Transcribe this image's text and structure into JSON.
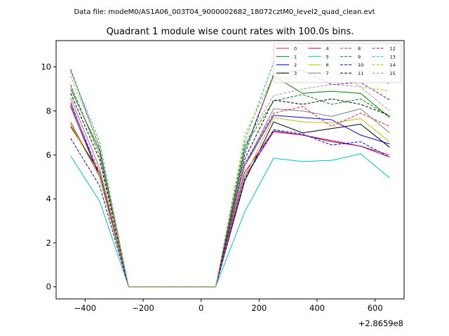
{
  "suptitle": "Data file: modeM0/AS1A06_003T04_9000002682_18072cztM0_level2_quad_clean.evt",
  "chart_data": {
    "type": "line",
    "title": "Quadrant 1 module wise count rates with 100.0s bins.",
    "xlabel": "",
    "ylabel": "",
    "x_offset_label": "+2.8659e8",
    "x": [
      -450,
      -350,
      -250,
      -150,
      -50,
      50,
      150,
      250,
      350,
      450,
      550,
      650
    ],
    "xlim": [
      -500,
      700
    ],
    "ylim": [
      -0.55,
      11.2
    ],
    "xticks": [
      -400,
      -200,
      0,
      200,
      400,
      600
    ],
    "xtick_labels": [
      "−400",
      "−200",
      "0",
      "200",
      "400",
      "600"
    ],
    "yticks": [
      0,
      2,
      4,
      6,
      8,
      10
    ],
    "ytick_labels": [
      "0",
      "2",
      "4",
      "6",
      "8",
      "10"
    ],
    "legend_position": "top-right",
    "legend_columns": 4,
    "series": [
      {
        "name": "0",
        "color": "#d62728",
        "dash": "solid",
        "values": [
          7.5,
          5.0,
          0,
          0,
          0,
          0,
          5.0,
          7.05,
          6.9,
          6.6,
          6.4,
          6.0
        ]
      },
      {
        "name": "1",
        "color": "#008000",
        "dash": "solid",
        "values": [
          9.0,
          6.2,
          0,
          0,
          0,
          0,
          6.2,
          9.6,
          8.8,
          8.9,
          8.8,
          7.7
        ]
      },
      {
        "name": "2",
        "color": "#0000ff",
        "dash": "solid",
        "values": [
          8.2,
          5.0,
          0,
          0,
          0,
          0,
          5.5,
          7.8,
          7.7,
          7.6,
          6.9,
          6.5
        ]
      },
      {
        "name": "3",
        "color": "#000000",
        "dash": "solid",
        "values": [
          7.3,
          5.2,
          0,
          0,
          0,
          0,
          4.8,
          7.5,
          7.0,
          7.2,
          7.4,
          6.35
        ]
      },
      {
        "name": "4",
        "color": "#8b008b",
        "dash": "solid",
        "values": [
          8.4,
          5.0,
          0,
          0,
          0,
          0,
          5.2,
          7.1,
          6.9,
          6.65,
          6.4,
          5.9
        ]
      },
      {
        "name": "5",
        "color": "#00bfbf",
        "dash": "solid",
        "values": [
          5.95,
          3.9,
          0,
          0,
          0,
          0,
          3.4,
          5.85,
          5.7,
          5.75,
          6.05,
          4.95
        ]
      },
      {
        "name": "6",
        "color": "#bfbf00",
        "dash": "solid",
        "values": [
          7.4,
          5.0,
          0,
          0,
          0,
          0,
          5.0,
          7.7,
          7.5,
          7.45,
          7.65,
          6.6
        ]
      },
      {
        "name": "7",
        "color": "#808080",
        "dash": "solid",
        "values": [
          8.6,
          5.4,
          0,
          0,
          0,
          0,
          5.5,
          8.1,
          8.0,
          7.75,
          8.1,
          7.0
        ]
      },
      {
        "name": "8",
        "color": "#d62728",
        "dash": "dashed",
        "values": [
          8.3,
          5.2,
          0,
          0,
          0,
          0,
          5.6,
          7.9,
          8.2,
          7.3,
          7.9,
          7.3
        ]
      },
      {
        "name": "9",
        "color": "#008000",
        "dash": "dashed",
        "values": [
          9.2,
          6.0,
          0,
          0,
          0,
          0,
          6.4,
          8.45,
          8.75,
          8.3,
          8.55,
          7.75
        ]
      },
      {
        "name": "10",
        "color": "#0000ff",
        "dash": "dashed",
        "values": [
          6.75,
          4.6,
          0,
          0,
          0,
          0,
          4.9,
          7.15,
          6.95,
          6.45,
          6.6,
          5.9
        ]
      },
      {
        "name": "11",
        "color": "#000000",
        "dash": "dashed",
        "values": [
          8.8,
          5.8,
          0,
          0,
          0,
          0,
          5.8,
          8.5,
          8.3,
          8.55,
          8.3,
          7.8
        ]
      },
      {
        "name": "12",
        "color": "#9400d3",
        "dash": "dashed",
        "values": [
          9.9,
          6.3,
          0,
          0,
          0,
          0,
          6.0,
          9.7,
          9.85,
          9.2,
          9.3,
          8.5
        ]
      },
      {
        "name": "13",
        "color": "#00bfbf",
        "dash": "dashed",
        "values": [
          9.8,
          6.6,
          0,
          0,
          0,
          0,
          6.6,
          10.2,
          10.65,
          10.4,
          10.1,
          9.2
        ]
      },
      {
        "name": "14",
        "color": "#bfbf00",
        "dash": "dashed",
        "values": [
          9.6,
          6.4,
          0,
          0,
          0,
          0,
          6.9,
          9.6,
          9.3,
          9.9,
          9.1,
          8.9
        ]
      },
      {
        "name": "15",
        "color": "#a0a0a0",
        "dash": "dashed",
        "values": [
          9.1,
          6.0,
          0,
          0,
          0,
          0,
          6.5,
          8.7,
          9.0,
          9.2,
          9.1,
          8.0
        ]
      }
    ]
  }
}
